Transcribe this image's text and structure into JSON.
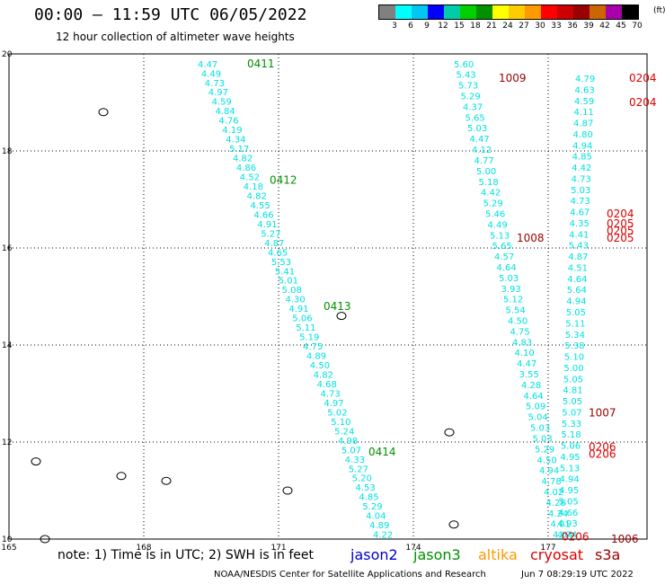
{
  "header": {
    "title": "00:00 – 11:59 UTC 06/05/2022",
    "subtitle": "12 hour collection of altimeter wave heights"
  },
  "legend": {
    "colors": [
      "#808080",
      "#00ffff",
      "#00c8f0",
      "#0000ff",
      "#00ccaa",
      "#00d000",
      "#009000",
      "#ffff00",
      "#ffcc00",
      "#ff9900",
      "#ff0000",
      "#cc0000",
      "#990000",
      "#cc6600",
      "#aa00aa",
      "#000000"
    ],
    "labels": [
      "3",
      "6",
      "9",
      "12",
      "15",
      "18",
      "21",
      "24",
      "27",
      "30",
      "33",
      "36",
      "39",
      "42",
      "45",
      "70"
    ],
    "unit": "(ft)"
  },
  "axes": {
    "x_ticks": [
      165,
      168,
      171,
      174,
      177
    ],
    "y_ticks": [
      10,
      12,
      14,
      16,
      18,
      20
    ]
  },
  "colors": {
    "cyan": "#00e0e0",
    "green": "#009000",
    "red": "#dd0000",
    "darkred": "#990000",
    "land": "#000000"
  },
  "track_ids": [
    {
      "text": "0411",
      "lon": 170.3,
      "lat": 19.8,
      "color": "green"
    },
    {
      "text": "0412",
      "lon": 170.8,
      "lat": 17.4,
      "color": "green"
    },
    {
      "text": "0413",
      "lon": 172.0,
      "lat": 14.8,
      "color": "green"
    },
    {
      "text": "0414",
      "lon": 173.0,
      "lat": 11.8,
      "color": "green"
    },
    {
      "text": "1009",
      "lon": 175.9,
      "lat": 19.5,
      "color": "darkred"
    },
    {
      "text": "1008",
      "lon": 176.3,
      "lat": 16.2,
      "color": "darkred"
    },
    {
      "text": "1007",
      "lon": 177.9,
      "lat": 12.6,
      "color": "darkred"
    },
    {
      "text": "1006",
      "lon": 178.4,
      "lat": 10.0,
      "color": "darkred"
    },
    {
      "text": "0204",
      "lon": 178.8,
      "lat": 19.5,
      "color": "red"
    },
    {
      "text": "0204",
      "lon": 178.8,
      "lat": 19.0,
      "color": "red"
    },
    {
      "text": "0204",
      "lon": 178.3,
      "lat": 16.7,
      "color": "red"
    },
    {
      "text": "0205",
      "lon": 178.3,
      "lat": 16.5,
      "color": "red"
    },
    {
      "text": "0205",
      "lon": 178.3,
      "lat": 16.35,
      "color": "red"
    },
    {
      "text": "0205",
      "lon": 178.3,
      "lat": 16.2,
      "color": "red"
    },
    {
      "text": "0206",
      "lon": 177.9,
      "lat": 11.9,
      "color": "red"
    },
    {
      "text": "0206",
      "lon": 177.9,
      "lat": 11.75,
      "color": "red"
    },
    {
      "text": "0206",
      "lon": 177.3,
      "lat": 10.05,
      "color": "red"
    }
  ],
  "tracks": [
    {
      "name": "t1",
      "color": "cyan",
      "lon0": 169.2,
      "lat0": 19.8,
      "lon1": 173.1,
      "lat1": 10.1,
      "values": [
        "4.47",
        "4.49",
        "4.73",
        "4.97",
        "4.59",
        "4.84",
        "4.76",
        "4.19",
        "4.34",
        "5.17",
        "4.82",
        "4.86",
        "4.52",
        "4.18",
        "4.82",
        "4.55",
        "4.66",
        "4.91",
        "5.27",
        "4.87",
        "4.65",
        "5.53",
        "5.41",
        "5.01",
        "5.08",
        "4.30",
        "4.91",
        "5.06",
        "5.11",
        "5.19",
        "4.75",
        "4.89",
        "4.50",
        "4.82",
        "4.68",
        "4.73",
        "4.97",
        "5.02",
        "5.10",
        "5.24",
        "4.98",
        "5.07",
        "4.33",
        "5.27",
        "5.20",
        "4.53",
        "4.85",
        "5.29",
        "4.04",
        "4.89",
        "4.22"
      ]
    },
    {
      "name": "t2",
      "color": "cyan",
      "lon0": 174.9,
      "lat0": 19.8,
      "lon1": 177.1,
      "lat1": 10.1,
      "values": [
        "5.60",
        "5.43",
        "5.73",
        "5.29",
        "4.37",
        "5.65",
        "5.03",
        "4.47",
        "4.12",
        "4.77",
        "5.00",
        "5.18",
        "4.42",
        "5.29",
        "5.46",
        "4.49",
        "5.13",
        "5.65",
        "4.57",
        "4.64",
        "5.03",
        "3.93",
        "5.12",
        "5.54",
        "4.50",
        "4.75",
        "4.83",
        "4.10",
        "4.47",
        "3.55",
        "4.28",
        "4.64",
        "5.09",
        "5.04",
        "5.03",
        "5.03",
        "5.29",
        "4.50",
        "4.94",
        "4.78",
        "4.02",
        "4.28",
        "4.24",
        "4.01",
        "4.04"
      ]
    },
    {
      "name": "t3",
      "color": "cyan",
      "lon0": 177.6,
      "lat0": 19.5,
      "lon1": 177.2,
      "lat1": 10.1,
      "values": [
        "4.79",
        "4.63",
        "4.59",
        "4.11",
        "4.87",
        "4.80",
        "4.94",
        "4.85",
        "4.42",
        "4.73",
        "5.03",
        "4.73",
        "4.67",
        "4.35",
        "4.41",
        "5.43",
        "4.87",
        "4.51",
        "4.64",
        "5.64",
        "4.94",
        "5.05",
        "5.11",
        "5.34",
        "5.38",
        "5.10",
        "5.00",
        "5.05",
        "4.81",
        "5.05",
        "5.07",
        "5.33",
        "5.18",
        "5.06",
        "4.95",
        "5.13",
        "4.94",
        "4.95",
        "5.05",
        "4.66",
        "4.93",
        "4.74"
      ]
    }
  ],
  "islands": [
    {
      "lon": 167.1,
      "lat": 18.8
    },
    {
      "lon": 172.4,
      "lat": 14.6
    },
    {
      "lon": 174.8,
      "lat": 12.2
    },
    {
      "lon": 165.6,
      "lat": 11.6
    },
    {
      "lon": 167.5,
      "lat": 11.3
    },
    {
      "lon": 168.5,
      "lat": 11.2
    },
    {
      "lon": 171.2,
      "lat": 11.0
    },
    {
      "lon": 174.9,
      "lat": 10.3
    },
    {
      "lon": 165.8,
      "lat": 10.0
    }
  ],
  "footer": {
    "note": "note: 1) Time is in UTC; 2) SWH is in feet",
    "missions": [
      {
        "text": "jason2",
        "color": "#0000cc"
      },
      {
        "text": "jason3",
        "color": "#009000"
      },
      {
        "text": "altika",
        "color": "#ff9900"
      },
      {
        "text": "cryosat",
        "color": "#dd0000"
      },
      {
        "text": "s3a",
        "color": "#990000"
      }
    ],
    "credit": "NOAA/NESDIS Center for Satellite Applications and Research",
    "timestamp": "Jun  7 08:29:19 UTC 2022"
  }
}
